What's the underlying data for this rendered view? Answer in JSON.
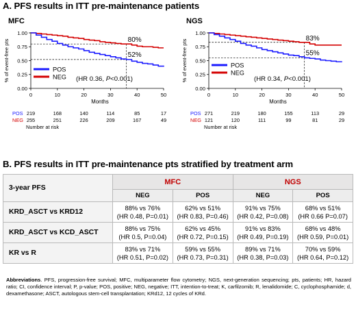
{
  "section_a_title": "A. PFS results in ITT pre-maintenance patients",
  "section_b_title": "B. PFS results in ITT pre-maintenance pts stratified by treatment arm",
  "colors": {
    "pos": "#1b1bff",
    "neg": "#d40000",
    "title_red": "#c00000"
  },
  "chart_data": [
    {
      "type": "line",
      "title": "MFC",
      "xlabel": "Months",
      "ylabel": "% of event-free pts",
      "xlim": [
        0,
        50
      ],
      "ylim": [
        0,
        1
      ],
      "xticks": [
        0,
        10,
        20,
        30,
        40,
        50
      ],
      "yticks": [
        "0.00",
        "0.25",
        "0.50",
        "0.75",
        "1.00"
      ],
      "series": [
        {
          "name": "POS",
          "color": "#1b1bff",
          "x": [
            0,
            2,
            4,
            6,
            8,
            10,
            12,
            14,
            16,
            18,
            20,
            22,
            24,
            26,
            28,
            30,
            32,
            34,
            36,
            38,
            40,
            42,
            44,
            46,
            48,
            50
          ],
          "y": [
            1.0,
            0.96,
            0.92,
            0.88,
            0.85,
            0.81,
            0.78,
            0.75,
            0.73,
            0.71,
            0.68,
            0.65,
            0.63,
            0.61,
            0.59,
            0.57,
            0.55,
            0.53,
            0.52,
            0.49,
            0.47,
            0.45,
            0.44,
            0.42,
            0.4,
            0.39
          ]
        },
        {
          "name": "NEG",
          "color": "#d40000",
          "x": [
            0,
            2,
            4,
            6,
            8,
            10,
            12,
            14,
            16,
            18,
            20,
            22,
            24,
            26,
            28,
            30,
            32,
            34,
            36,
            38,
            40,
            42,
            44,
            46,
            48,
            50
          ],
          "y": [
            1.0,
            0.99,
            0.98,
            0.97,
            0.96,
            0.95,
            0.94,
            0.92,
            0.91,
            0.9,
            0.88,
            0.87,
            0.86,
            0.84,
            0.83,
            0.82,
            0.81,
            0.8,
            0.8,
            0.78,
            0.76,
            0.75,
            0.75,
            0.74,
            0.73,
            0.73
          ]
        }
      ],
      "annotations": {
        "neg_label": "80%",
        "pos_label": "52%",
        "landmark_month": 36,
        "landmark_neg": 0.8,
        "landmark_pos": 0.52,
        "hr_prefix": "(HR 0.36, ",
        "hr_p": "P",
        "hr_suffix": "<0.001)"
      },
      "legend": {
        "position": "bottom-left",
        "pos": "POS",
        "neg": "NEG"
      },
      "risk_table": {
        "title": "Number at risk",
        "pos_label": "POS",
        "neg_label": "NEG",
        "pos": [
          "219",
          "168",
          "140",
          "114",
          "85",
          "17"
        ],
        "neg": [
          "255",
          "251",
          "226",
          "209",
          "167",
          "49"
        ]
      }
    },
    {
      "type": "line",
      "title": "NGS",
      "xlabel": "Months",
      "ylabel": "% of event-free pts",
      "xlim": [
        0,
        50
      ],
      "ylim": [
        0,
        1
      ],
      "xticks": [
        0,
        10,
        20,
        30,
        40,
        50
      ],
      "yticks": [
        "0.00",
        "0.25",
        "0.50",
        "0.75",
        "1.00"
      ],
      "series": [
        {
          "name": "POS",
          "color": "#1b1bff",
          "x": [
            0,
            2,
            4,
            6,
            8,
            10,
            12,
            14,
            16,
            18,
            20,
            22,
            24,
            26,
            28,
            30,
            32,
            34,
            36,
            38,
            40,
            42,
            44,
            46,
            48,
            50
          ],
          "y": [
            1.0,
            0.97,
            0.94,
            0.91,
            0.88,
            0.85,
            0.81,
            0.78,
            0.76,
            0.73,
            0.7,
            0.68,
            0.66,
            0.64,
            0.62,
            0.6,
            0.59,
            0.57,
            0.55,
            0.54,
            0.53,
            0.51,
            0.5,
            0.49,
            0.48,
            0.47
          ]
        },
        {
          "name": "NEG",
          "color": "#d40000",
          "x": [
            0,
            2,
            4,
            6,
            8,
            10,
            12,
            14,
            16,
            18,
            20,
            22,
            24,
            26,
            28,
            30,
            32,
            34,
            36,
            38,
            40,
            42,
            44,
            46,
            48,
            50
          ],
          "y": [
            1.0,
            0.99,
            0.98,
            0.97,
            0.96,
            0.95,
            0.94,
            0.93,
            0.92,
            0.91,
            0.9,
            0.89,
            0.88,
            0.87,
            0.86,
            0.85,
            0.84,
            0.83,
            0.83,
            0.8,
            0.78,
            0.78,
            0.78,
            0.78,
            0.78,
            0.78
          ]
        }
      ],
      "annotations": {
        "neg_label": "83%",
        "pos_label": "55%",
        "landmark_month": 36,
        "landmark_neg": 0.83,
        "landmark_pos": 0.55,
        "hr_prefix": "(HR 0.34, ",
        "hr_p": "P",
        "hr_suffix": "<0.001)"
      },
      "legend": {
        "position": "middle-left",
        "pos": "POS",
        "neg": "NEG"
      },
      "risk_table": {
        "title": "Number at risk",
        "pos_label": "POS",
        "neg_label": "NEG",
        "pos": [
          "271",
          "219",
          "180",
          "155",
          "113",
          "29"
        ],
        "neg": [
          "121",
          "120",
          "111",
          "99",
          "81",
          "29"
        ]
      }
    }
  ],
  "table": {
    "corner": "3-year PFS",
    "groups": [
      "MFC",
      "NGS"
    ],
    "subheaders": [
      "NEG",
      "POS",
      "NEG",
      "POS"
    ],
    "rows": [
      {
        "label": "KRD_ASCT vs KRD12",
        "cells": [
          {
            "line1": "88% vs 76%",
            "line2": "(HR 0.48, P=0.01)"
          },
          {
            "line1": "62% vs 51%",
            "line2": "(HR 0.83, P=0.46)"
          },
          {
            "line1": "91% vs 75%",
            "line2": "(HR 0.42, P=0.08)"
          },
          {
            "line1": "68% vs 51%",
            "line2": "(HR 0.66 P=0.07)"
          }
        ]
      },
      {
        "label": "KRD_ASCT vs KCD_ASCT",
        "cells": [
          {
            "line1": "88% vs 75%",
            "line2": "(HR 0.5, P=0.04)"
          },
          {
            "line1": "62% vs 45%",
            "line2": "(HR 0.72, P=0.15)"
          },
          {
            "line1": "91% vs 83%",
            "line2": "(HR 0.49, P=0.19)"
          },
          {
            "line1": "68% vs 48%",
            "line2": "(HR 0.59, P=0.01)"
          }
        ]
      },
      {
        "label": "KR vs R",
        "cells": [
          {
            "line1": "83% vs 71%",
            "line2": "(HR 0.51, P=0.02)"
          },
          {
            "line1": "59% vs 55%",
            "line2": "(HR 0.73, P=0.31)"
          },
          {
            "line1": "89% vs 71%",
            "line2": "(HR 0.38, P=0.03)"
          },
          {
            "line1": "70% vs 59%",
            "line2": "(HR 0.64, P=0.12)"
          }
        ]
      }
    ]
  },
  "abbreviations": {
    "label": "Abbreviations",
    "text": ". PFS, progression-free survival; MFC, multiparameter flow cytometry; NGS, next-generation sequencing; pts, patients; HR, hazard ratio; CI, confidence interval; P, p-value; POS, positive; NEG, negative; ITT, intention-to-treat; K, carfilzomib; R, lenalidomide; C, cyclophosphamide; d, dexamethasone; ASCT, autologous stem-cell transplantation; KRd12, 12 cycles of KRd."
  }
}
